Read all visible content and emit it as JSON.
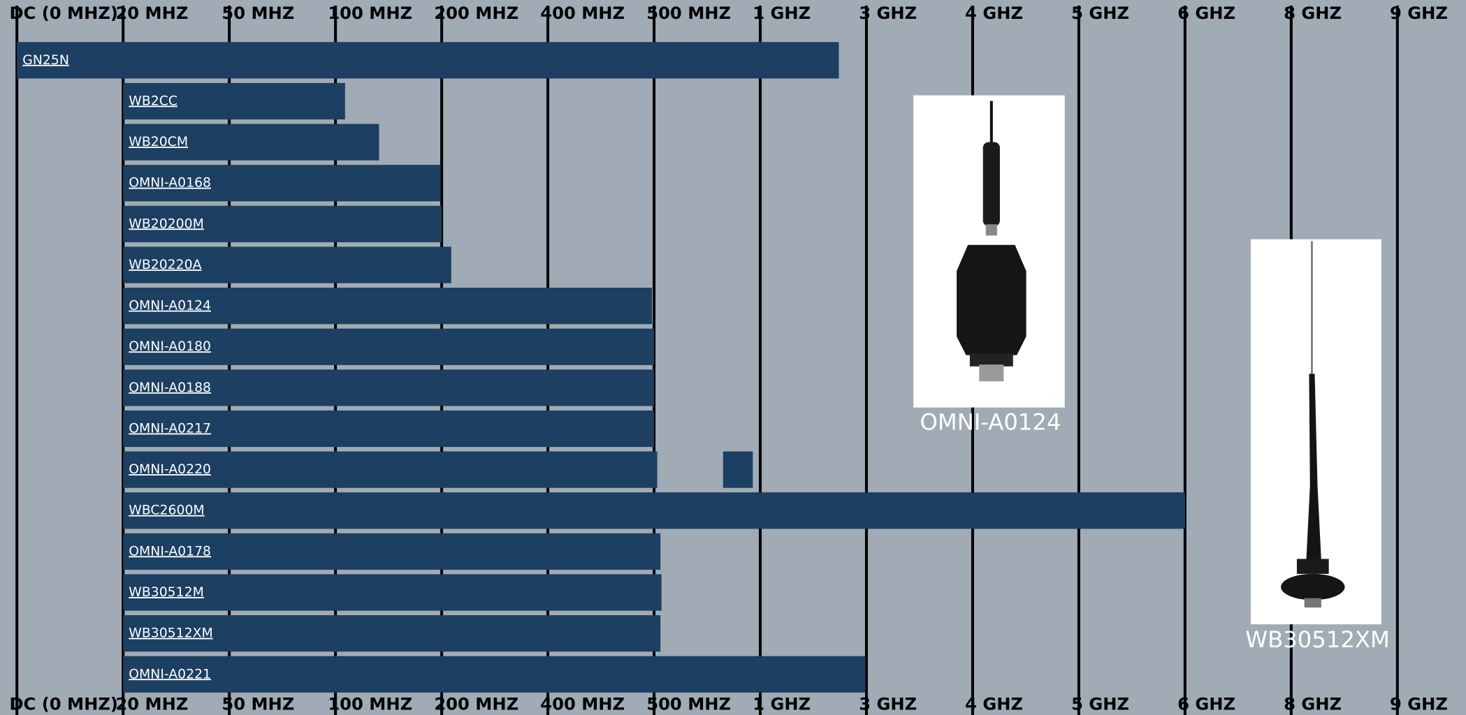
{
  "chart_data": {
    "type": "range-bar",
    "categories": [
      "GN25N",
      "WB2CC",
      "WB20CM",
      "OMNI-A0168",
      "WB20200M",
      "WB20220A",
      "OMNI-A0124",
      "OMNI-A0180",
      "OMNI-A0188",
      "OMNI-A0217",
      "OMNI-A0220",
      "WBC2600M",
      "OMNI-A0178",
      "WB30512M",
      "WB30512XM",
      "OMNI-A0221"
    ],
    "ranges": [
      [
        [
          0,
          7.74
        ]
      ],
      [
        [
          1,
          3.09
        ]
      ],
      [
        [
          1,
          3.41
        ]
      ],
      [
        [
          1,
          3.99
        ]
      ],
      [
        [
          1,
          4.0
        ]
      ],
      [
        [
          1,
          4.09
        ]
      ],
      [
        [
          1,
          5.98
        ]
      ],
      [
        [
          1,
          6.0
        ]
      ],
      [
        [
          1,
          6.0
        ]
      ],
      [
        [
          1,
          6.0
        ]
      ],
      [
        [
          1,
          6.03
        ],
        [
          6.65,
          6.93
        ]
      ],
      [
        [
          1,
          11.0
        ]
      ],
      [
        [
          1,
          6.06
        ]
      ],
      [
        [
          1,
          6.07
        ]
      ],
      [
        [
          1,
          6.06
        ]
      ],
      [
        [
          1,
          7.99
        ]
      ]
    ],
    "color": "#1c3f62",
    "xlim": [
      0,
      13
    ],
    "xticks": [
      {
        "value": 0,
        "label": "DC (0 MHZ)"
      },
      {
        "value": 1,
        "label": "20 MHZ"
      },
      {
        "value": 2,
        "label": "50 MHZ"
      },
      {
        "value": 3,
        "label": "100 MHZ"
      },
      {
        "value": 4,
        "label": "200 MHZ"
      },
      {
        "value": 5,
        "label": "400 MHZ"
      },
      {
        "value": 6,
        "label": "500 MHZ"
      },
      {
        "value": 7,
        "label": "1 GHZ"
      },
      {
        "value": 8,
        "label": "3 GHZ"
      },
      {
        "value": 9,
        "label": "4 GHZ"
      },
      {
        "value": 10,
        "label": "5 GHZ"
      },
      {
        "value": 11,
        "label": "6 GHZ"
      },
      {
        "value": 12,
        "label": "8 GHZ"
      },
      {
        "value": 13,
        "label": "9 GHZ"
      }
    ],
    "grid": true
  },
  "images": [
    {
      "caption": "OMNI-A0124"
    },
    {
      "caption": "WB30512XM"
    }
  ]
}
